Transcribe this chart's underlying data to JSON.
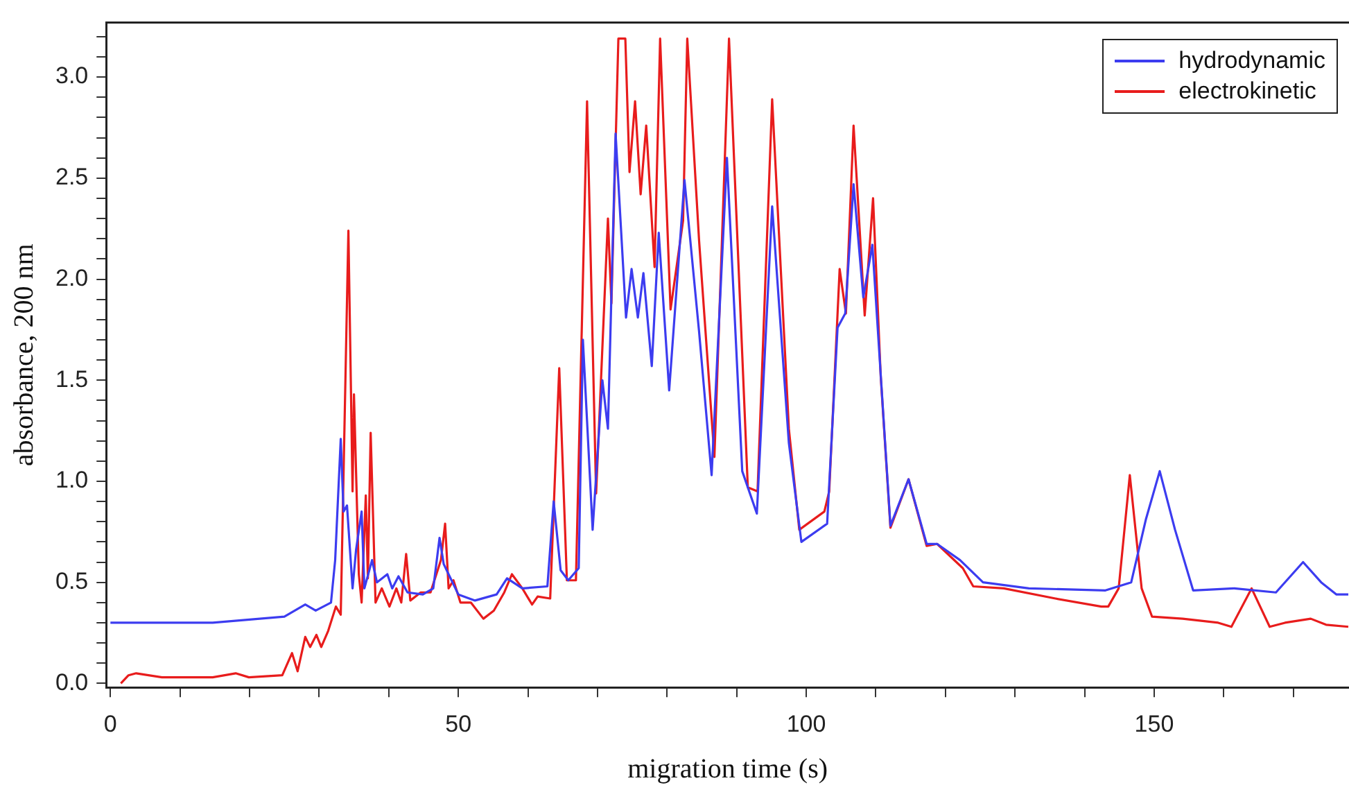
{
  "chart_data": {
    "type": "line",
    "xlabel": "migration time (s)",
    "ylabel": "absorbance, 200 nm",
    "xlim": [
      -0.6,
      178
    ],
    "ylim": [
      -0.02,
      3.27
    ],
    "xticks": [
      {
        "value": 0,
        "label": "0"
      },
      {
        "value": 10,
        "label": null
      },
      {
        "value": 20,
        "label": null
      },
      {
        "value": 30,
        "label": null
      },
      {
        "value": 40,
        "label": null
      },
      {
        "value": 50,
        "label": "50"
      },
      {
        "value": 60,
        "label": null
      },
      {
        "value": 70,
        "label": null
      },
      {
        "value": 80,
        "label": null
      },
      {
        "value": 90,
        "label": null
      },
      {
        "value": 100,
        "label": "100"
      },
      {
        "value": 110,
        "label": null
      },
      {
        "value": 120,
        "label": null
      },
      {
        "value": 130,
        "label": null
      },
      {
        "value": 140,
        "label": null
      },
      {
        "value": 150,
        "label": "150"
      },
      {
        "value": 160,
        "label": null
      },
      {
        "value": 170,
        "label": null
      }
    ],
    "yticks": [
      {
        "value": 0,
        "label": "0.0"
      },
      {
        "value": 0.1,
        "label": null
      },
      {
        "value": 0.2,
        "label": null
      },
      {
        "value": 0.3,
        "label": null
      },
      {
        "value": 0.4,
        "label": null
      },
      {
        "value": 0.5,
        "label": "0.5"
      },
      {
        "value": 0.6,
        "label": null
      },
      {
        "value": 0.7,
        "label": null
      },
      {
        "value": 0.8,
        "label": null
      },
      {
        "value": 0.9,
        "label": null
      },
      {
        "value": 1,
        "label": "1.0"
      },
      {
        "value": 1.1,
        "label": null
      },
      {
        "value": 1.2,
        "label": null
      },
      {
        "value": 1.3,
        "label": null
      },
      {
        "value": 1.4,
        "label": null
      },
      {
        "value": 1.5,
        "label": "1.5"
      },
      {
        "value": 1.6,
        "label": null
      },
      {
        "value": 1.7,
        "label": null
      },
      {
        "value": 1.8,
        "label": null
      },
      {
        "value": 1.9,
        "label": null
      },
      {
        "value": 2,
        "label": "2.0"
      },
      {
        "value": 2.1,
        "label": null
      },
      {
        "value": 2.2,
        "label": null
      },
      {
        "value": 2.3,
        "label": null
      },
      {
        "value": 2.4,
        "label": null
      },
      {
        "value": 2.5,
        "label": "2.5"
      },
      {
        "value": 2.6,
        "label": null
      },
      {
        "value": 2.7,
        "label": null
      },
      {
        "value": 2.8,
        "label": null
      },
      {
        "value": 2.9,
        "label": null
      },
      {
        "value": 3,
        "label": "3.0"
      },
      {
        "value": 3.1,
        "label": null
      },
      {
        "value": 3.2,
        "label": null
      }
    ],
    "grid": false,
    "legend": "top right",
    "marker": "none",
    "line_style": "solid",
    "series": [
      {
        "name": "hydrodynamic",
        "color": "#3c3cf0",
        "x": [
          0,
          14.7,
          25,
          28,
          29.5,
          31.7,
          32.3,
          33.1,
          33.5,
          34,
          34.8,
          35.3,
          36.1,
          36.5,
          37.6,
          38.3,
          39.8,
          40.5,
          41.4,
          42.7,
          44.9,
          46.4,
          47.3,
          47.9,
          48.6,
          50,
          52.4,
          55.5,
          57,
          59.2,
          62.8,
          63.7,
          64.7,
          65.8,
          67.3,
          67.9,
          69.3,
          70.7,
          71.5,
          72.6,
          74.1,
          74.9,
          75.8,
          76.6,
          77.8,
          78.8,
          80.3,
          82.5,
          84.6,
          86.4,
          88.6,
          90.8,
          92.9,
          95.1,
          97.5,
          99.3,
          103,
          104.5,
          105.6,
          106.8,
          108.2,
          109.5,
          112.1,
          114.7,
          117.3,
          118.8,
          122.1,
          125.4,
          132,
          143,
          146.7,
          148.8,
          150.8,
          153,
          155.6,
          161.5,
          167.5,
          171.4,
          174,
          176.2,
          177.9
        ],
        "values": [
          0.3,
          0.3,
          0.33,
          0.39,
          0.36,
          0.4,
          0.61,
          1.21,
          0.85,
          0.88,
          0.47,
          0.66,
          0.85,
          0.47,
          0.61,
          0.5,
          0.54,
          0.47,
          0.53,
          0.45,
          0.44,
          0.47,
          0.72,
          0.59,
          0.54,
          0.44,
          0.41,
          0.44,
          0.52,
          0.47,
          0.48,
          0.9,
          0.56,
          0.51,
          0.57,
          1.7,
          0.76,
          1.5,
          1.26,
          2.72,
          1.81,
          2.05,
          1.81,
          2.03,
          1.57,
          2.23,
          1.45,
          2.49,
          1.74,
          1.03,
          2.6,
          1.05,
          0.84,
          2.36,
          1.19,
          0.7,
          0.79,
          1.76,
          1.83,
          2.47,
          1.91,
          2.17,
          0.78,
          1.01,
          0.69,
          0.69,
          0.61,
          0.5,
          0.47,
          0.46,
          0.5,
          0.81,
          1.05,
          0.76,
          0.46,
          0.47,
          0.45,
          0.6,
          0.5,
          0.44,
          0.44
        ]
      },
      {
        "name": "electrokinetic",
        "color": "#e81c1c",
        "x": [
          1.5,
          2.6,
          3.7,
          7.4,
          14.7,
          18,
          19.9,
          24.7,
          26.1,
          26.9,
          28,
          28.7,
          29.6,
          30.3,
          31.3,
          32.4,
          33.1,
          34.2,
          34.8,
          35,
          35.7,
          36.1,
          36.7,
          37,
          37.4,
          38.1,
          39,
          40.1,
          41.1,
          41.8,
          42.5,
          43.1,
          44.6,
          46,
          47.5,
          48.1,
          48.6,
          49.3,
          50.3,
          51.8,
          53.6,
          55.1,
          56.6,
          57.7,
          59.2,
          60.6,
          61.4,
          63.2,
          64.5,
          65.6,
          66.9,
          68.5,
          69.8,
          71.5,
          72,
          73,
          74,
          74.6,
          75.4,
          76.2,
          77,
          78.2,
          79,
          80.5,
          82.3,
          82.9,
          84.6,
          86.8,
          88.9,
          91.6,
          93,
          95.1,
          97.5,
          99,
          102.6,
          103.3,
          104.8,
          105.7,
          106.8,
          108.4,
          109.6,
          110.7,
          112.1,
          114.7,
          117.3,
          118.8,
          122.5,
          124,
          128.4,
          135.8,
          142.4,
          143.4,
          144.9,
          146.5,
          148.2,
          149.7,
          154.1,
          159.2,
          161.1,
          164,
          166.6,
          168.8,
          172.5,
          174.7,
          177.9
        ],
        "values": [
          0,
          0.04,
          0.05,
          0.03,
          0.03,
          0.05,
          0.03,
          0.04,
          0.15,
          0.06,
          0.23,
          0.18,
          0.24,
          0.18,
          0.26,
          0.38,
          0.34,
          2.24,
          0.95,
          1.43,
          0.54,
          0.4,
          0.93,
          0.52,
          1.24,
          0.4,
          0.47,
          0.38,
          0.47,
          0.4,
          0.64,
          0.41,
          0.45,
          0.45,
          0.61,
          0.79,
          0.47,
          0.51,
          0.4,
          0.4,
          0.32,
          0.36,
          0.45,
          0.54,
          0.47,
          0.39,
          0.43,
          0.42,
          1.56,
          0.51,
          0.51,
          2.88,
          0.94,
          2.3,
          1.88,
          3.19,
          3.19,
          2.53,
          2.88,
          2.42,
          2.76,
          2.06,
          3.19,
          1.85,
          2.29,
          3.19,
          2.19,
          1.12,
          3.19,
          0.97,
          0.95,
          2.89,
          1.26,
          0.76,
          0.85,
          0.95,
          2.05,
          1.83,
          2.76,
          1.82,
          2.4,
          1.52,
          0.77,
          1.01,
          0.68,
          0.69,
          0.57,
          0.48,
          0.47,
          0.42,
          0.38,
          0.38,
          0.47,
          1.03,
          0.47,
          0.33,
          0.32,
          0.3,
          0.28,
          0.47,
          0.28,
          0.3,
          0.32,
          0.29,
          0.28
        ]
      }
    ]
  }
}
